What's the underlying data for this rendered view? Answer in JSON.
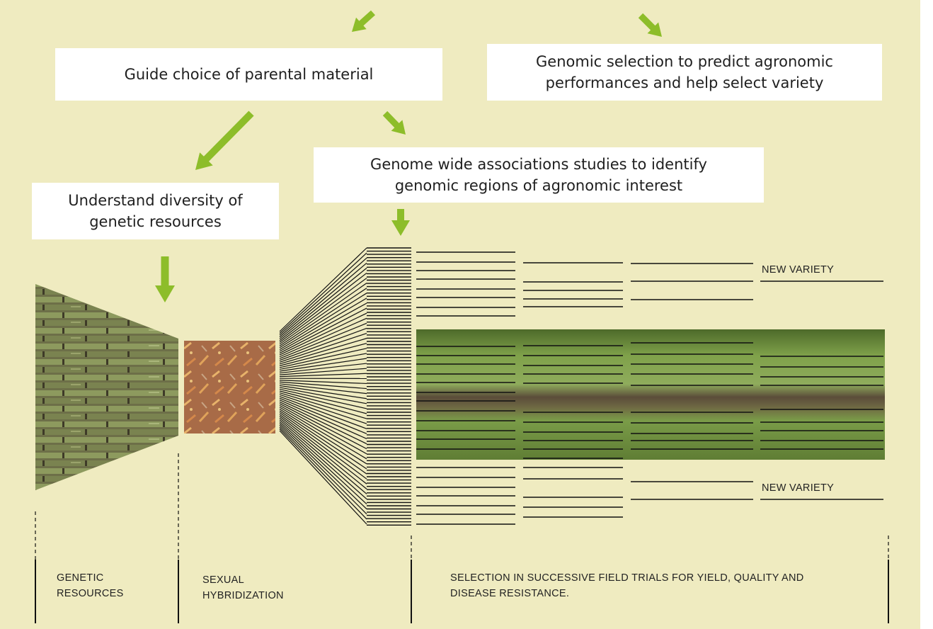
{
  "colors": {
    "background": "#efebc0",
    "arrow": "#8dbd2a",
    "box": "#ffffff",
    "line": "#111111"
  },
  "boxes": {
    "parental": "Guide choice of parental material",
    "genomic_selection": "Genomic selection to predict agronomic performances and help select variety",
    "gwas": "Genome wide associations studies to identify genomic regions of agronomic interest",
    "diversity": "Understand diversity of genetic resources"
  },
  "labels": {
    "new_variety_top": "NEW VARIETY",
    "new_variety_bottom": "NEW VARIETY"
  },
  "stages": {
    "genetic_resources": "GENETIC RESOURCES",
    "hybridization": "SEXUAL HYBRIDIZATION",
    "selection": "SELECTION IN SUCCESSIVE FIELD TRIALS FOR YIELD, QUALITY AND DISEASE RESISTANCE."
  },
  "icons": {
    "arrows": "arrow-icon",
    "images": [
      "sugarcane-stalks-image",
      "flower-tassel-image",
      "field-trial-image"
    ]
  }
}
